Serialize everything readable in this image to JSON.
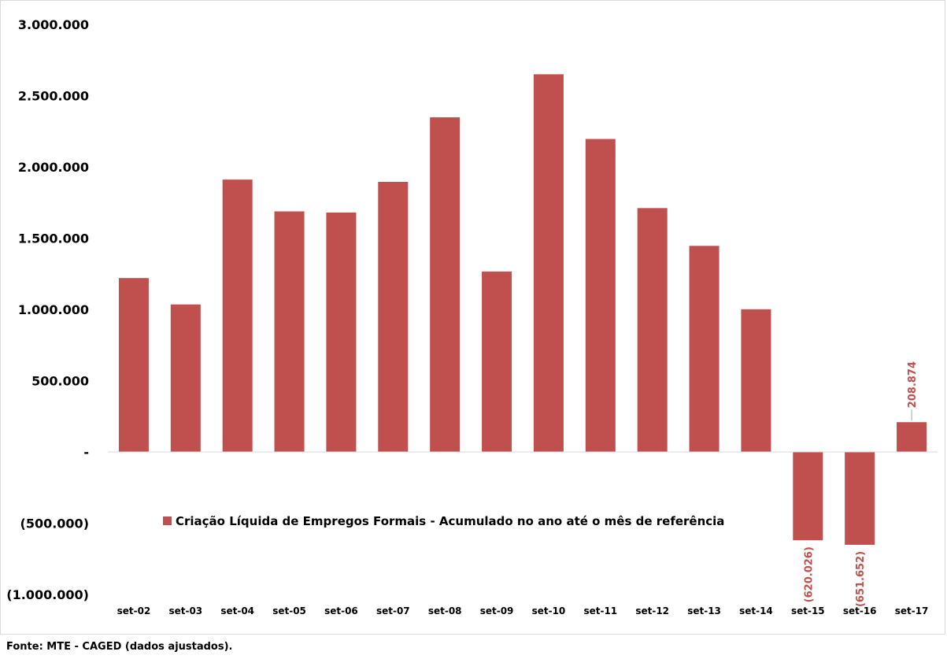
{
  "chart_data": {
    "type": "bar",
    "categories": [
      "set-02",
      "set-03",
      "set-04",
      "set-05",
      "set-06",
      "set-07",
      "set-08",
      "set-09",
      "set-10",
      "set-11",
      "set-12",
      "set-13",
      "set-14",
      "set-15",
      "set-16",
      "set-17"
    ],
    "series": [
      {
        "name": "Criação Líquida de Empregos Formais - Acumulado no ano até o mês de referência",
        "values": [
          1220000,
          1035000,
          1911000,
          1688000,
          1680000,
          1895000,
          2348000,
          1266000,
          2650000,
          2196000,
          1711000,
          1446000,
          1001000,
          -620026,
          -651652,
          208874
        ],
        "color": "#c0504d"
      }
    ],
    "data_labels": [
      {
        "category": "set-15",
        "text": "(620.026)"
      },
      {
        "category": "set-16",
        "text": "(651.652)"
      },
      {
        "category": "set-17",
        "text": "208.874"
      }
    ],
    "y_ticks": [
      {
        "value": 3000000,
        "label": "3.000.000"
      },
      {
        "value": 2500000,
        "label": "2.500.000"
      },
      {
        "value": 2000000,
        "label": "2.000.000"
      },
      {
        "value": 1500000,
        "label": "1.500.000"
      },
      {
        "value": 1000000,
        "label": "1.000.000"
      },
      {
        "value": 500000,
        "label": "500.000"
      },
      {
        "value": 0,
        "label": "-"
      },
      {
        "value": -500000,
        "label": "(500.000)"
      },
      {
        "value": -1000000,
        "label": "(1.000.000)"
      }
    ],
    "ylim": [
      -1000000,
      3000000
    ],
    "grid": false,
    "legend_position": "inside-bottom-center",
    "data_label_color": "#c0504d"
  },
  "source_note": "Fonte: MTE - CAGED (dados ajustados)."
}
